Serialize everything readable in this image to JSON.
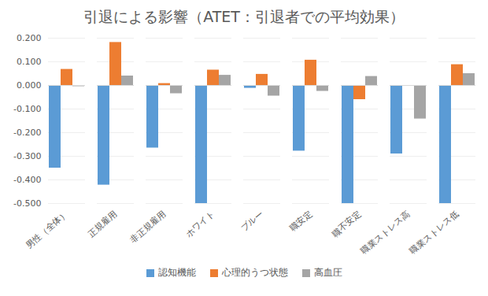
{
  "chart_data": {
    "type": "bar",
    "title": "引退による影響（ATET：引退者での平均効果）",
    "categories": [
      "男性（全体）",
      "正規雇用",
      "非正規雇用",
      "ホワイト",
      "ブルー",
      "職安定",
      "職不安定",
      "職業ストレス高",
      "職業ストレス低"
    ],
    "series": [
      {
        "name": "認知機能",
        "color": "#5B9BD5",
        "values": [
          -0.35,
          -0.422,
          -0.265,
          -0.5,
          -0.012,
          -0.278,
          -0.5,
          -0.29,
          -0.5
        ]
      },
      {
        "name": "心理的うつ状態",
        "color": "#ED7D31",
        "values": [
          0.068,
          0.182,
          0.008,
          0.065,
          0.047,
          0.107,
          -0.06,
          0.0,
          0.088
        ]
      },
      {
        "name": "高血圧",
        "color": "#A5A5A5",
        "values": [
          -0.005,
          0.04,
          -0.035,
          0.043,
          -0.045,
          -0.025,
          0.038,
          -0.142,
          0.05
        ]
      }
    ],
    "ylim": [
      -0.5,
      0.2
    ],
    "yticks": [
      {
        "value": -0.5,
        "label": "-0.500"
      },
      {
        "value": -0.4,
        "label": "-0.400"
      },
      {
        "value": -0.3,
        "label": "-0.300"
      },
      {
        "value": -0.2,
        "label": "-0.200"
      },
      {
        "value": -0.1,
        "label": "-0.100"
      },
      {
        "value": 0,
        "label": "0.000"
      },
      {
        "value": 0.1,
        "label": "0.100"
      },
      {
        "value": 0.2,
        "label": "0.200"
      }
    ],
    "grid": true,
    "legend": "bottom"
  }
}
